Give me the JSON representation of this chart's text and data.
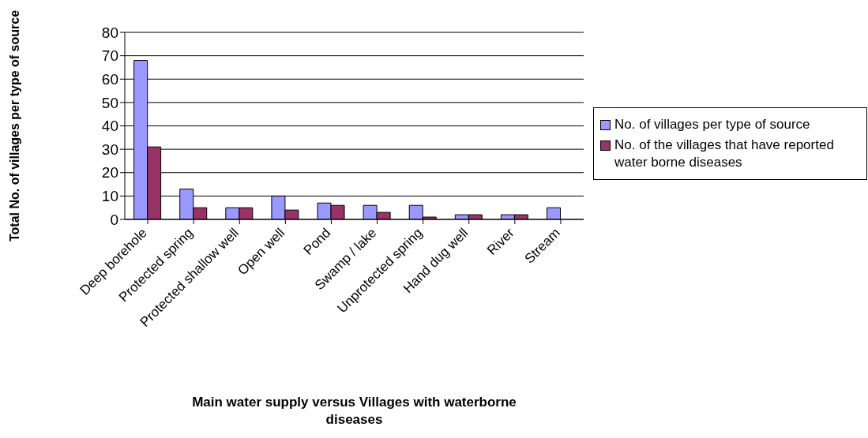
{
  "chart_data": {
    "type": "bar",
    "xlabel": "Main water supply versus Villages with waterborne diseases",
    "ylabel": "Total No. of villages per type of source",
    "categories": [
      "Deep borehole",
      "Protected spring",
      "Protected shallow well",
      "Open well",
      "Pond",
      "Swamp / lake",
      "Unprotected spring",
      "Hand dug well",
      "River",
      "Stream"
    ],
    "series": [
      {
        "name": "No. of villages per type of source",
        "color": "#9999ff",
        "values": [
          68,
          13,
          5,
          10,
          7,
          6,
          6,
          2,
          2,
          5
        ]
      },
      {
        "name": "No. of the villages that have reported water borne diseases",
        "color": "#993366",
        "values": [
          31,
          5,
          5,
          4,
          6,
          3,
          1,
          2,
          2,
          null
        ]
      }
    ],
    "ylim": [
      0,
      80
    ],
    "yticks": [
      0,
      10,
      20,
      30,
      40,
      50,
      60,
      70,
      80
    ],
    "grid": "y",
    "legend": "right"
  }
}
